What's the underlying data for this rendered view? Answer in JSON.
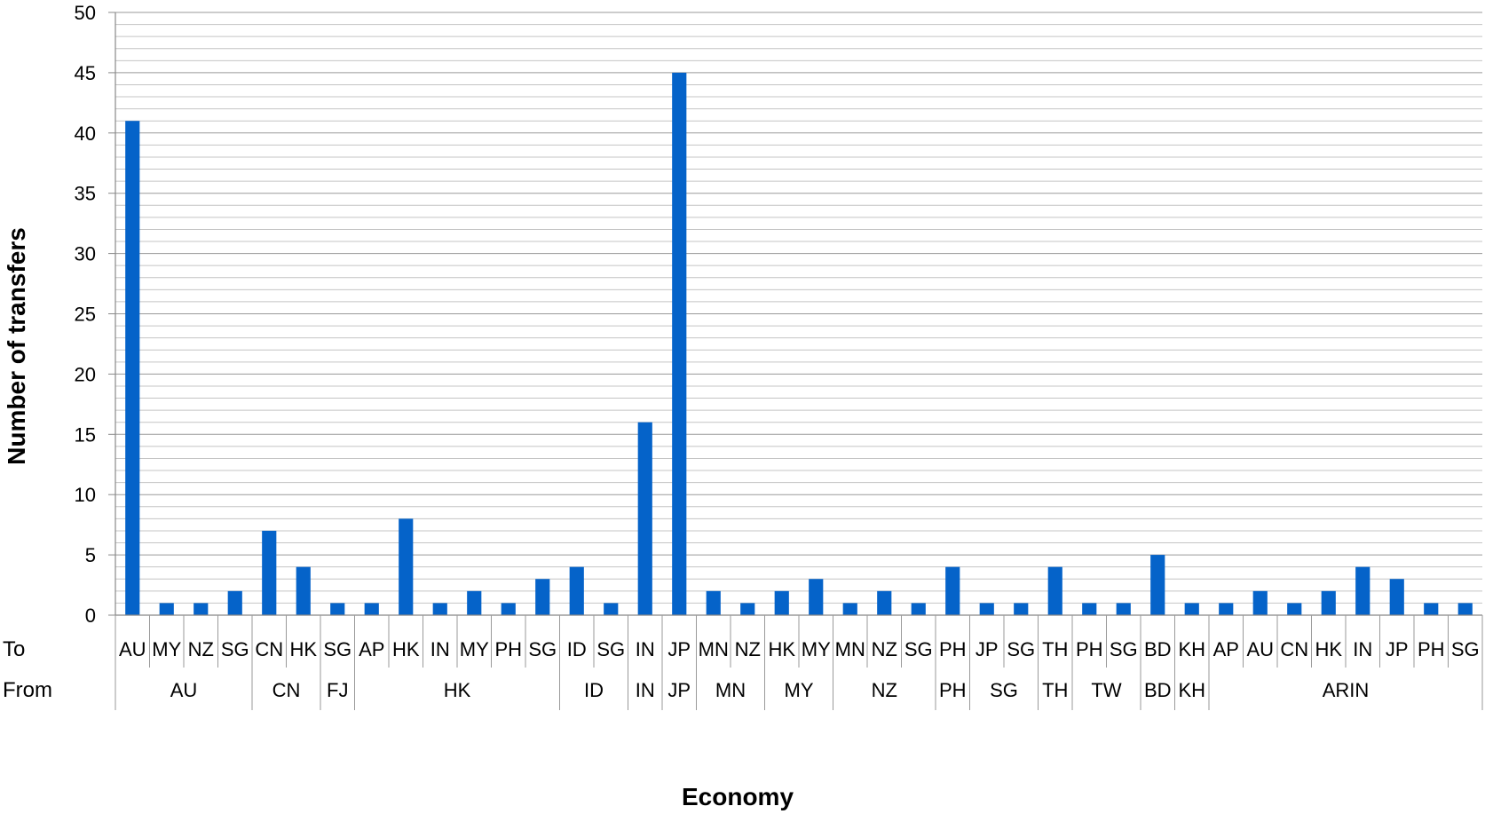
{
  "chart_data": {
    "type": "bar",
    "xlabel": "Economy",
    "ylabel": "Number of transfers",
    "ylim": [
      0,
      50
    ],
    "y_major_ticks": [
      0,
      5,
      10,
      15,
      20,
      25,
      30,
      35,
      40,
      45,
      50
    ],
    "y_minor_step": 1,
    "grid": true,
    "bar_color": "#0563c9",
    "row_labels": {
      "to": "To",
      "from": "From"
    },
    "categories_to": [
      "AU",
      "MY",
      "NZ",
      "SG",
      "CN",
      "HK",
      "SG",
      "AP",
      "HK",
      "IN",
      "MY",
      "PH",
      "SG",
      "ID",
      "SG",
      "IN",
      "JP",
      "MN",
      "NZ",
      "HK",
      "MY",
      "MN",
      "NZ",
      "SG",
      "PH",
      "JP",
      "SG",
      "TH",
      "PH",
      "SG",
      "BD",
      "KH",
      "AP",
      "AU",
      "CN",
      "HK",
      "IN",
      "JP",
      "PH",
      "SG"
    ],
    "values": [
      41,
      1,
      1,
      2,
      7,
      4,
      1,
      1,
      8,
      1,
      2,
      1,
      3,
      4,
      1,
      16,
      45,
      2,
      1,
      2,
      3,
      1,
      2,
      1,
      4,
      1,
      1,
      4,
      1,
      1,
      5,
      1,
      1,
      2,
      1,
      2,
      4,
      3,
      1,
      1
    ],
    "groups_from": [
      {
        "label": "AU",
        "count": 4
      },
      {
        "label": "CN",
        "count": 2
      },
      {
        "label": "FJ",
        "count": 1
      },
      {
        "label": "HK",
        "count": 6
      },
      {
        "label": "ID",
        "count": 2
      },
      {
        "label": "IN",
        "count": 1
      },
      {
        "label": "JP",
        "count": 1
      },
      {
        "label": "MN",
        "count": 2
      },
      {
        "label": "MY",
        "count": 2
      },
      {
        "label": "NZ",
        "count": 3
      },
      {
        "label": "PH",
        "count": 1
      },
      {
        "label": "SG",
        "count": 2
      },
      {
        "label": "TH",
        "count": 1
      },
      {
        "label": "TW",
        "count": 2
      },
      {
        "label": "BD",
        "count": 1
      },
      {
        "label": "KH",
        "count": 1
      },
      {
        "label": "ARIN",
        "count": 8
      }
    ]
  }
}
